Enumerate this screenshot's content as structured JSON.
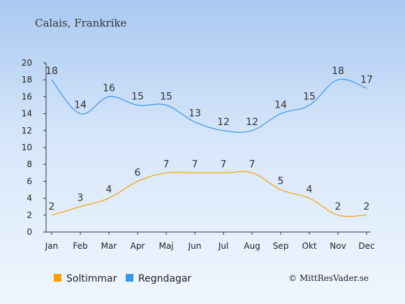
{
  "chart_data": {
    "type": "line",
    "title": "Calais, Frankrike",
    "xlabel": "",
    "ylabel": "",
    "ylim": [
      0,
      20
    ],
    "yticks": [
      0,
      2,
      4,
      6,
      8,
      10,
      12,
      14,
      16,
      18,
      20
    ],
    "grid": false,
    "legend_placement": "bottom-left",
    "categories": [
      "Jan",
      "Feb",
      "Mar",
      "Apr",
      "Maj",
      "Jun",
      "Jul",
      "Aug",
      "Sep",
      "Okt",
      "Nov",
      "Dec"
    ],
    "series": [
      {
        "name": "Soltimmar",
        "color": "#f5a000",
        "values": [
          2,
          3,
          4,
          6,
          7,
          7,
          7,
          7,
          5,
          4,
          2,
          2
        ]
      },
      {
        "name": "Regndagar",
        "color": "#3a97e6",
        "values": [
          18,
          14,
          16,
          15,
          15,
          13,
          12,
          12,
          14,
          15,
          18,
          17
        ]
      }
    ]
  },
  "credit": "© MittResVader.se"
}
